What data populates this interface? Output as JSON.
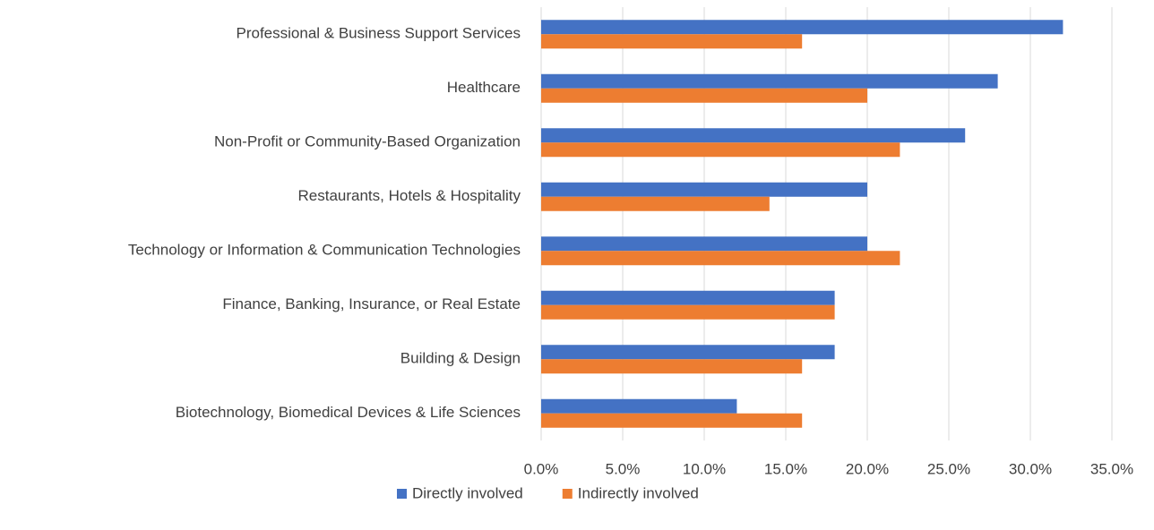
{
  "chart_data": {
    "type": "hbar",
    "categories": [
      "Professional & Business Support Services",
      "Healthcare",
      "Non-Profit or Community-Based Organization",
      "Restaurants, Hotels & Hospitality",
      "Technology or Information & Communication Technologies",
      "Finance, Banking, Insurance, or Real Estate",
      "Building & Design",
      "Biotechnology, Biomedical Devices & Life Sciences"
    ],
    "series": [
      {
        "name": "Directly involved",
        "color": "#4472c4",
        "values": [
          32,
          28,
          26,
          20,
          20,
          18,
          18,
          12
        ]
      },
      {
        "name": "Indirectly involved",
        "color": "#ed7d31",
        "values": [
          16,
          20,
          22,
          14,
          22,
          18,
          16,
          16
        ]
      }
    ],
    "xlim": [
      0,
      35
    ],
    "xticks": [
      {
        "value": 0,
        "label": "0.0%"
      },
      {
        "value": 5,
        "label": "5.0%"
      },
      {
        "value": 10,
        "label": "10.0%"
      },
      {
        "value": 15,
        "label": "15.0%"
      },
      {
        "value": 20,
        "label": "20.0%"
      },
      {
        "value": 25,
        "label": "25.0%"
      },
      {
        "value": 30,
        "label": "30.0%"
      },
      {
        "value": 35,
        "label": "35.0%"
      }
    ],
    "grid": true,
    "legend": "bottom"
  }
}
